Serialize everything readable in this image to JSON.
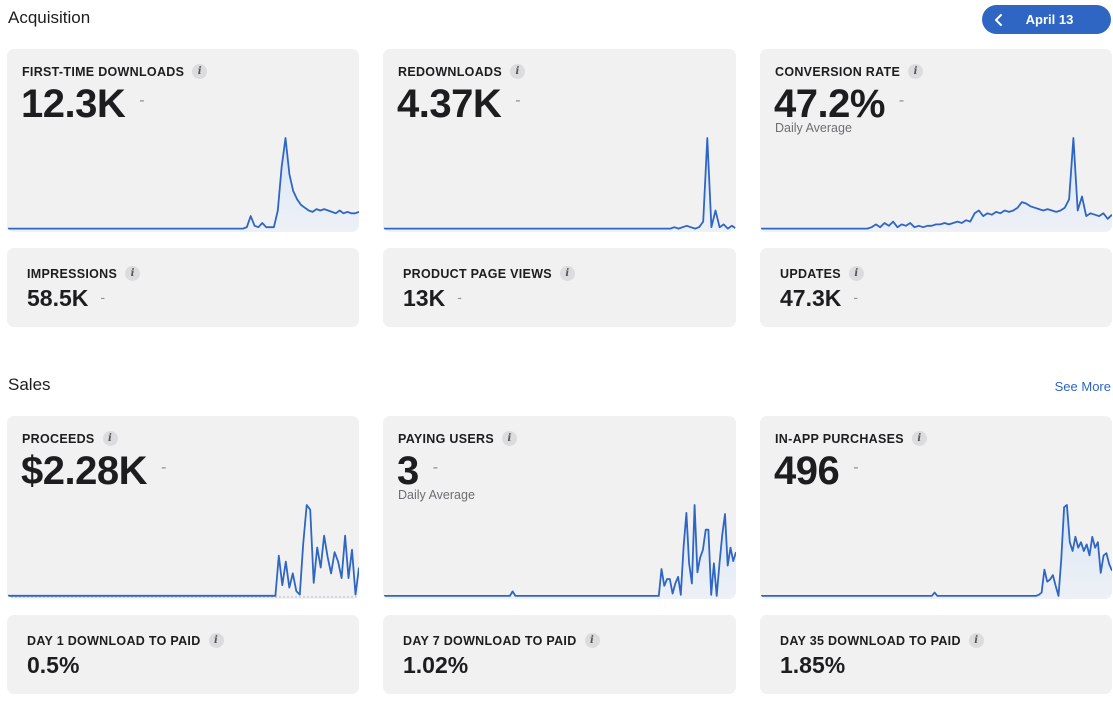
{
  "acquisition": {
    "title": "Acquisition",
    "date_label": "April 13",
    "cards": [
      {
        "title": "FIRST-TIME DOWNLOADS",
        "value": "12.3K",
        "change": "-",
        "sub": ""
      },
      {
        "title": "REDOWNLOADS",
        "value": "4.37K",
        "change": "-",
        "sub": ""
      },
      {
        "title": "CONVERSION RATE",
        "value": "47.2%",
        "change": "-",
        "sub": "Daily Average"
      }
    ],
    "small_cards": [
      {
        "title": "IMPRESSIONS",
        "value": "58.5K",
        "change": "-"
      },
      {
        "title": "PRODUCT PAGE VIEWS",
        "value": "13K",
        "change": "-"
      },
      {
        "title": "UPDATES",
        "value": "47.3K",
        "change": "-"
      }
    ]
  },
  "sales": {
    "title": "Sales",
    "see_more": "See More",
    "cards": [
      {
        "title": "PROCEEDS",
        "value": "$2.28K",
        "change": "-",
        "sub": ""
      },
      {
        "title": "PAYING USERS",
        "value": "3",
        "change": "-",
        "sub": "Daily Average"
      },
      {
        "title": "IN-APP PURCHASES",
        "value": "496",
        "change": "-",
        "sub": ""
      }
    ],
    "small_cards": [
      {
        "title": "DAY 1 DOWNLOAD TO PAID",
        "value": "0.5%"
      },
      {
        "title": "DAY 7 DOWNLOAD TO PAID",
        "value": "1.02%"
      },
      {
        "title": "DAY 35 DOWNLOAD TO PAID",
        "value": "1.85%"
      }
    ]
  },
  "icons": {
    "info": "i",
    "back": "chevron-left-icon"
  },
  "colors": {
    "accent": "#2f66c4",
    "card_bg": "#f1f1f2",
    "line": "#2f66c4"
  },
  "sparklines": {
    "first_time_downloads": [
      1,
      1,
      1,
      1,
      1,
      1,
      1,
      1,
      1,
      1,
      1,
      1,
      1,
      1,
      1,
      1,
      1,
      1,
      1,
      1,
      1,
      1,
      1,
      1,
      1,
      1,
      1,
      1,
      1,
      1,
      1,
      1,
      1,
      1,
      1,
      1,
      1,
      1,
      1,
      1,
      1,
      1,
      1,
      1,
      1,
      1,
      1,
      1,
      1,
      1,
      1,
      1,
      1,
      1,
      1,
      1,
      1,
      1,
      1,
      1,
      1,
      1,
      2,
      10,
      3,
      2,
      5,
      2,
      2,
      2,
      14,
      45,
      66,
      40,
      28,
      22,
      18,
      16,
      14,
      13,
      15,
      14,
      15,
      14,
      13,
      12,
      14,
      12,
      13,
      12,
      12,
      13
    ],
    "redownloads": [
      1,
      1,
      1,
      1,
      1,
      1,
      1,
      1,
      1,
      1,
      1,
      1,
      1,
      1,
      1,
      1,
      1,
      1,
      1,
      1,
      1,
      1,
      1,
      1,
      1,
      1,
      1,
      1,
      1,
      1,
      1,
      1,
      1,
      1,
      1,
      1,
      1,
      1,
      1,
      1,
      1,
      1,
      1,
      1,
      1,
      1,
      1,
      1,
      1,
      1,
      1,
      1,
      1,
      1,
      1,
      1,
      1,
      1,
      1,
      1,
      1,
      1,
      1,
      1,
      1,
      1,
      1,
      1,
      1,
      1,
      1,
      2,
      1,
      2,
      3,
      2,
      1,
      2,
      6,
      66,
      2,
      14,
      2,
      4,
      1,
      3,
      1
    ],
    "conversion_rate": [
      1,
      1,
      1,
      1,
      1,
      1,
      1,
      1,
      1,
      1,
      1,
      1,
      1,
      1,
      1,
      1,
      1,
      1,
      1,
      1,
      1,
      1,
      1,
      1,
      1,
      1,
      2,
      4,
      2,
      5,
      3,
      6,
      2,
      4,
      3,
      5,
      2,
      3,
      2,
      3,
      3,
      4,
      4,
      5,
      4,
      5,
      6,
      5,
      7,
      6,
      12,
      14,
      10,
      12,
      11,
      13,
      12,
      14,
      13,
      14,
      16,
      20,
      19,
      17,
      16,
      15,
      14,
      15,
      14,
      13,
      14,
      16,
      22,
      66,
      14,
      24,
      10,
      12,
      11,
      10,
      12,
      8,
      11
    ],
    "proceeds": [
      1,
      1,
      1,
      1,
      1,
      1,
      1,
      1,
      1,
      1,
      1,
      1,
      1,
      1,
      1,
      1,
      1,
      1,
      1,
      1,
      1,
      1,
      1,
      1,
      1,
      1,
      1,
      1,
      1,
      1,
      1,
      1,
      1,
      1,
      1,
      1,
      1,
      1,
      1,
      1,
      1,
      1,
      1,
      1,
      1,
      1,
      1,
      1,
      1,
      1,
      1,
      1,
      1,
      1,
      1,
      1,
      1,
      1,
      1,
      1,
      1,
      1,
      1,
      1,
      1,
      1,
      1,
      1,
      1,
      1,
      1,
      1,
      1,
      1,
      1,
      1,
      1,
      1,
      35,
      10,
      30,
      8,
      20,
      5,
      2,
      45,
      78,
      74,
      12,
      42,
      25,
      52,
      34,
      20,
      38,
      30,
      16,
      52,
      16,
      40,
      2,
      25
    ],
    "paying_users": [
      1,
      1,
      1,
      1,
      1,
      1,
      1,
      1,
      1,
      1,
      1,
      1,
      1,
      1,
      1,
      1,
      1,
      1,
      1,
      1,
      1,
      1,
      1,
      1,
      1,
      1,
      1,
      1,
      1,
      1,
      1,
      1,
      1,
      1,
      1,
      1,
      1,
      1,
      1,
      1,
      1,
      1,
      1,
      1,
      1,
      1,
      1,
      5,
      1,
      1,
      1,
      1,
      1,
      1,
      1,
      1,
      1,
      1,
      1,
      1,
      1,
      1,
      1,
      1,
      1,
      1,
      1,
      1,
      1,
      1,
      1,
      1,
      1,
      1,
      1,
      1,
      1,
      1,
      1,
      1,
      1,
      1,
      1,
      1,
      1,
      1,
      1,
      1,
      1,
      1,
      1,
      1,
      1,
      1,
      1,
      1,
      1,
      1,
      1,
      1,
      1,
      25,
      10,
      16,
      16,
      3,
      12,
      18,
      2,
      45,
      75,
      30,
      12,
      82,
      22,
      35,
      42,
      60,
      60,
      2,
      30,
      1,
      30,
      55,
      74,
      28,
      44,
      32,
      40
    ],
    "in_app_purchases": [
      1,
      1,
      1,
      1,
      1,
      1,
      1,
      1,
      1,
      1,
      1,
      1,
      1,
      1,
      1,
      1,
      1,
      1,
      1,
      1,
      1,
      1,
      1,
      1,
      1,
      1,
      1,
      1,
      1,
      1,
      1,
      1,
      1,
      1,
      1,
      1,
      1,
      1,
      1,
      1,
      1,
      1,
      1,
      1,
      1,
      1,
      1,
      1,
      1,
      1,
      1,
      1,
      1,
      1,
      1,
      1,
      1,
      1,
      1,
      1,
      1,
      1,
      4,
      1,
      1,
      1,
      1,
      1,
      1,
      1,
      1,
      1,
      1,
      1,
      1,
      1,
      1,
      1,
      1,
      1,
      1,
      1,
      1,
      1,
      1,
      1,
      1,
      1,
      1,
      1,
      1,
      1,
      1,
      1,
      1,
      1,
      1,
      1,
      1,
      2,
      4,
      25,
      14,
      16,
      20,
      10,
      1,
      35,
      82,
      84,
      50,
      42,
      55,
      45,
      50,
      42,
      48,
      38,
      55,
      45,
      50,
      22,
      38,
      40,
      30,
      24
    ]
  }
}
